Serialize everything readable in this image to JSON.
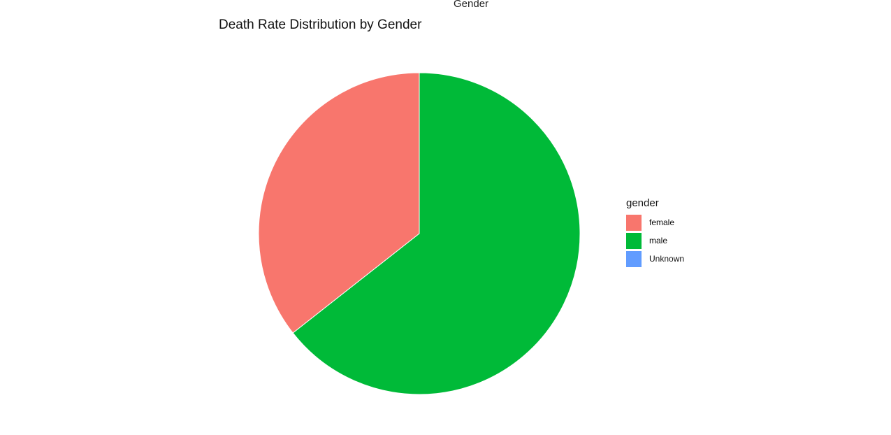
{
  "header": {
    "top_label": "Gender"
  },
  "chart_data": {
    "type": "pie",
    "title": "Death Rate Distribution by Gender",
    "legend_title": "gender",
    "legend_position": "right",
    "categories": [
      "female",
      "male",
      "Unknown"
    ],
    "values": [
      35.6,
      64.4,
      0
    ],
    "colors": [
      "#F8766D",
      "#00BA38",
      "#619CFF"
    ],
    "start_angle_deg": 0,
    "direction": "counterclockwise"
  }
}
